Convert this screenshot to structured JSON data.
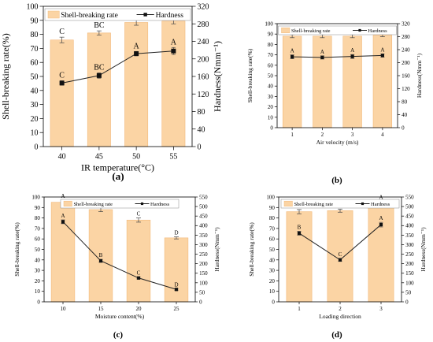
{
  "chart_data": [
    {
      "type": "bar",
      "panel_label": "(a)",
      "categories": [
        "40",
        "45",
        "50",
        "55"
      ],
      "xlabel": "IR temperature(°C)",
      "ylabel": "Shell-breaking rate(%)",
      "y2label": "Hardness(Nmm⁻¹)",
      "ylim": [
        0,
        100
      ],
      "y2lim": [
        0,
        320
      ],
      "yticks": [
        "0",
        "10",
        "20",
        "30",
        "40",
        "50",
        "60",
        "70",
        "80",
        "90",
        "100"
      ],
      "y2ticks": [
        "0",
        "40",
        "80",
        "120",
        "160",
        "200",
        "240",
        "280",
        "320"
      ],
      "legend": {
        "bar": "Shell-breaking rate",
        "line": "Hardness",
        "position": "top"
      },
      "series": [
        {
          "name": "Shell-breaking rate",
          "type": "bar",
          "values": [
            76,
            81,
            88.5,
            89.5
          ],
          "errors": [
            2,
            1.5,
            2,
            2
          ]
        },
        {
          "name": "Hardness",
          "type": "line",
          "axis": "right",
          "values": [
            145,
            162,
            212,
            218
          ],
          "errors": [
            5,
            6,
            5,
            8
          ]
        }
      ],
      "bar_letters": [
        "C",
        "BC",
        "A",
        "A"
      ],
      "line_letters": [
        "C",
        "BC",
        "A",
        "A"
      ]
    },
    {
      "type": "bar",
      "panel_label": "(b)",
      "categories": [
        "1",
        "2",
        "3",
        "4"
      ],
      "xlabel": "Air velocity (m/s)",
      "ylabel": "Shell-breaking rate(%)",
      "y2label": "Hardness(Nmm⁻¹)",
      "ylim": [
        0,
        100
      ],
      "y2lim": [
        0,
        320
      ],
      "yticks": [
        "0",
        "10",
        "20",
        "30",
        "40",
        "50",
        "60",
        "70",
        "80",
        "90",
        "100"
      ],
      "y2ticks": [
        "0",
        "40",
        "80",
        "120",
        "160",
        "200",
        "240",
        "280",
        "320"
      ],
      "legend": {
        "bar": "Shell-breaking rate",
        "line": "Hardness",
        "position": "top"
      },
      "series": [
        {
          "name": "Shell-breaking rate",
          "type": "bar",
          "values": [
            88,
            88,
            88,
            89
          ],
          "errors": [
            1.5,
            1.5,
            1.5,
            1.5
          ]
        },
        {
          "name": "Hardness",
          "type": "line",
          "axis": "right",
          "values": [
            218,
            216,
            219,
            222
          ],
          "errors": [
            6,
            5,
            6,
            5
          ]
        }
      ],
      "bar_letters": [
        "A",
        "A",
        "A",
        "A"
      ],
      "line_letters": [
        "A",
        "A",
        "A",
        "A"
      ]
    },
    {
      "type": "bar",
      "panel_label": "(c)",
      "categories": [
        "10",
        "15",
        "20",
        "25"
      ],
      "xlabel": "Moisture content(%)",
      "ylabel": "Shell-breaking rate(%)",
      "y2label": "Hardness(Nmm⁻¹)",
      "ylim": [
        0,
        100
      ],
      "y2lim": [
        0,
        550
      ],
      "yticks": [
        "0",
        "10",
        "20",
        "30",
        "40",
        "50",
        "60",
        "70",
        "80",
        "90",
        "100"
      ],
      "y2ticks": [
        "0",
        "50",
        "100",
        "150",
        "200",
        "250",
        "300",
        "350",
        "400",
        "450",
        "500",
        "550"
      ],
      "legend": {
        "bar": "Shell-breaking rate",
        "line": "Hardness",
        "position": "top"
      },
      "series": [
        {
          "name": "Shell-breaking rate",
          "type": "bar",
          "values": [
            95,
            88,
            78,
            61
          ],
          "errors": [
            2,
            2,
            2,
            1
          ]
        },
        {
          "name": "Hardness",
          "type": "line",
          "axis": "right",
          "values": [
            420,
            215,
            125,
            65
          ],
          "errors": [
            10,
            8,
            5,
            4
          ]
        }
      ],
      "bar_letters": [
        "A",
        "B",
        "C",
        "D"
      ],
      "line_letters": [
        "A",
        "B",
        "C",
        "D"
      ]
    },
    {
      "type": "bar",
      "panel_label": "(d)",
      "categories": [
        "1",
        "2",
        "3"
      ],
      "xlabel": "Loading direction",
      "ylabel": "Shell-breaking rate(%)",
      "y2label": "Hardness(Nmm⁻¹)",
      "ylim": [
        0,
        100
      ],
      "y2lim": [
        0,
        550
      ],
      "yticks": [
        "0",
        "10",
        "20",
        "30",
        "40",
        "50",
        "60",
        "70",
        "80",
        "90",
        "100"
      ],
      "y2ticks": [
        "0",
        "50",
        "100",
        "150",
        "200",
        "250",
        "300",
        "350",
        "400",
        "450",
        "500",
        "550"
      ],
      "legend": {
        "bar": "Shell-breaking rate",
        "line": "Hardness",
        "position": "top"
      },
      "series": [
        {
          "name": "Shell-breaking rate",
          "type": "bar",
          "values": [
            86,
            87,
            94
          ],
          "errors": [
            2,
            1.5,
            2
          ]
        },
        {
          "name": "Hardness",
          "type": "line",
          "axis": "right",
          "values": [
            360,
            220,
            405
          ],
          "errors": [
            10,
            8,
            12
          ]
        }
      ],
      "bar_letters": [
        "B",
        "B",
        "A"
      ],
      "line_letters": [
        "B",
        "C",
        "A"
      ]
    }
  ],
  "colors": {
    "bar_fill": "#fbd4a4",
    "bar_stroke": "#f2b97a",
    "line": "#222222",
    "marker": "#111111",
    "error": "#444444"
  }
}
